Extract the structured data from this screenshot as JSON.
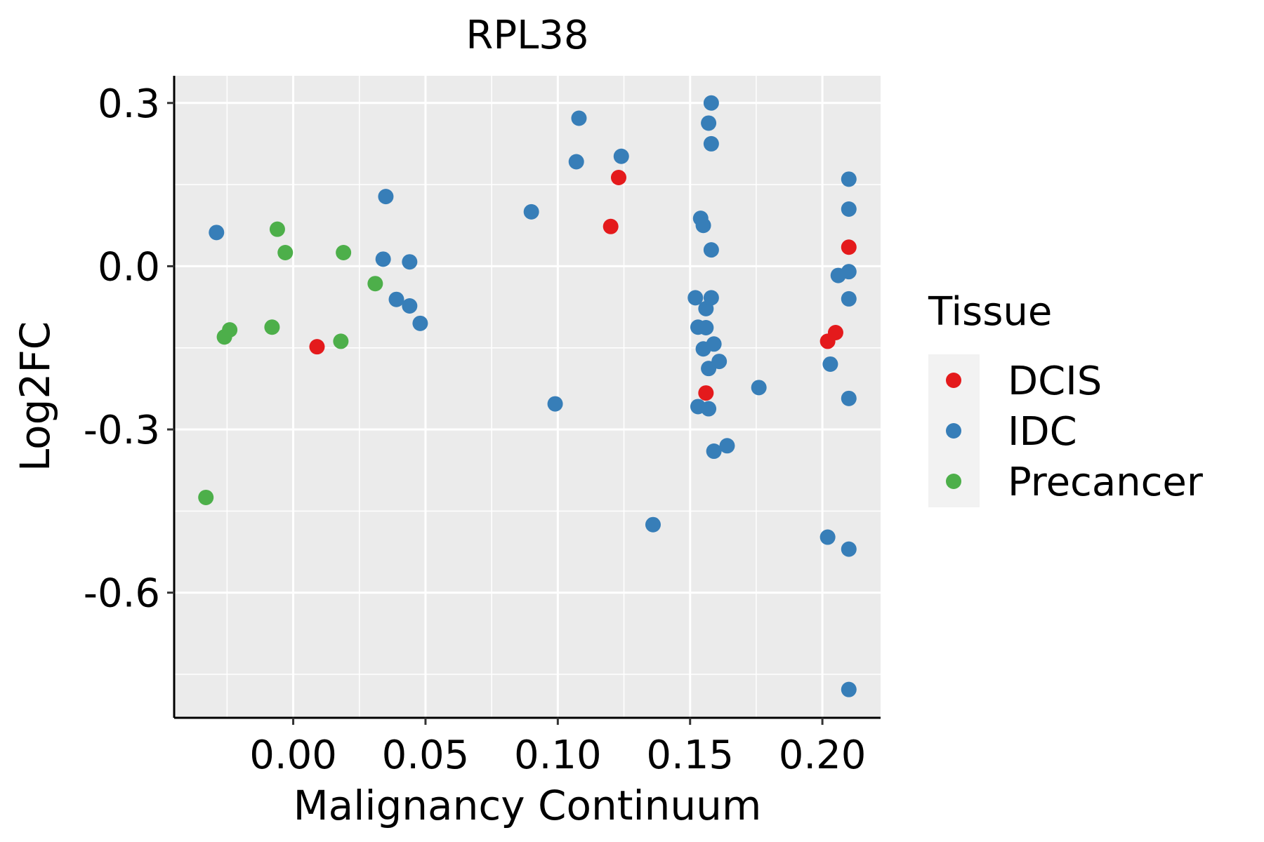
{
  "chart_data": {
    "type": "scatter",
    "title": "RPL38",
    "xlabel": "Malignancy Continuum",
    "ylabel": "Log2FC",
    "xlim": [
      -0.045,
      0.222
    ],
    "ylim": [
      -0.83,
      0.35
    ],
    "x_ticks": [
      0.0,
      0.05,
      0.1,
      0.15,
      0.2
    ],
    "x_tick_labels": [
      "0.00",
      "0.05",
      "0.10",
      "0.15",
      "0.20"
    ],
    "y_ticks": [
      0.3,
      0.0,
      -0.3,
      -0.6
    ],
    "y_tick_labels": [
      "0.3",
      "0.0",
      "-0.3",
      "-0.6"
    ],
    "grid": true,
    "legend": {
      "title": "Tissue",
      "position": "right",
      "entries": [
        {
          "name": "DCIS",
          "color": "#E41A1C"
        },
        {
          "name": "IDC",
          "color": "#377EB8"
        },
        {
          "name": "Precancer",
          "color": "#4DAF4A"
        }
      ]
    },
    "series": [
      {
        "name": "DCIS",
        "color": "#E41A1C",
        "points": [
          {
            "x": 0.009,
            "y": -0.148
          },
          {
            "x": 0.12,
            "y": 0.073
          },
          {
            "x": 0.123,
            "y": 0.163
          },
          {
            "x": 0.156,
            "y": -0.233
          },
          {
            "x": 0.202,
            "y": -0.138
          },
          {
            "x": 0.205,
            "y": -0.122
          },
          {
            "x": 0.21,
            "y": 0.035
          }
        ]
      },
      {
        "name": "IDC",
        "color": "#377EB8",
        "points": [
          {
            "x": -0.029,
            "y": 0.062
          },
          {
            "x": 0.034,
            "y": 0.013
          },
          {
            "x": 0.035,
            "y": 0.128
          },
          {
            "x": 0.039,
            "y": -0.061
          },
          {
            "x": 0.044,
            "y": -0.073
          },
          {
            "x": 0.044,
            "y": 0.008
          },
          {
            "x": 0.048,
            "y": -0.105
          },
          {
            "x": 0.09,
            "y": 0.1
          },
          {
            "x": 0.099,
            "y": -0.253
          },
          {
            "x": 0.107,
            "y": 0.192
          },
          {
            "x": 0.108,
            "y": 0.272
          },
          {
            "x": 0.124,
            "y": 0.202
          },
          {
            "x": 0.136,
            "y": -0.475
          },
          {
            "x": 0.152,
            "y": -0.058
          },
          {
            "x": 0.153,
            "y": -0.112
          },
          {
            "x": 0.153,
            "y": -0.258
          },
          {
            "x": 0.154,
            "y": 0.088
          },
          {
            "x": 0.155,
            "y": 0.075
          },
          {
            "x": 0.155,
            "y": -0.152
          },
          {
            "x": 0.156,
            "y": -0.078
          },
          {
            "x": 0.156,
            "y": -0.113
          },
          {
            "x": 0.157,
            "y": 0.263
          },
          {
            "x": 0.157,
            "y": -0.188
          },
          {
            "x": 0.157,
            "y": -0.262
          },
          {
            "x": 0.158,
            "y": -0.058
          },
          {
            "x": 0.158,
            "y": 0.3
          },
          {
            "x": 0.158,
            "y": 0.225
          },
          {
            "x": 0.158,
            "y": 0.03
          },
          {
            "x": 0.159,
            "y": -0.143
          },
          {
            "x": 0.159,
            "y": -0.34
          },
          {
            "x": 0.161,
            "y": -0.175
          },
          {
            "x": 0.164,
            "y": -0.33
          },
          {
            "x": 0.176,
            "y": -0.223
          },
          {
            "x": 0.202,
            "y": -0.498
          },
          {
            "x": 0.203,
            "y": -0.18
          },
          {
            "x": 0.206,
            "y": -0.017
          },
          {
            "x": 0.21,
            "y": 0.16
          },
          {
            "x": 0.21,
            "y": 0.105
          },
          {
            "x": 0.21,
            "y": -0.01
          },
          {
            "x": 0.21,
            "y": -0.06
          },
          {
            "x": 0.21,
            "y": -0.243
          },
          {
            "x": 0.21,
            "y": -0.52
          },
          {
            "x": 0.21,
            "y": -0.778
          }
        ]
      },
      {
        "name": "Precancer",
        "color": "#4DAF4A",
        "points": [
          {
            "x": -0.033,
            "y": -0.425
          },
          {
            "x": -0.026,
            "y": -0.13
          },
          {
            "x": -0.024,
            "y": -0.117
          },
          {
            "x": -0.008,
            "y": -0.112
          },
          {
            "x": -0.006,
            "y": 0.068
          },
          {
            "x": -0.003,
            "y": 0.025
          },
          {
            "x": 0.018,
            "y": -0.138
          },
          {
            "x": 0.019,
            "y": 0.025
          },
          {
            "x": 0.031,
            "y": -0.032
          }
        ]
      }
    ]
  }
}
